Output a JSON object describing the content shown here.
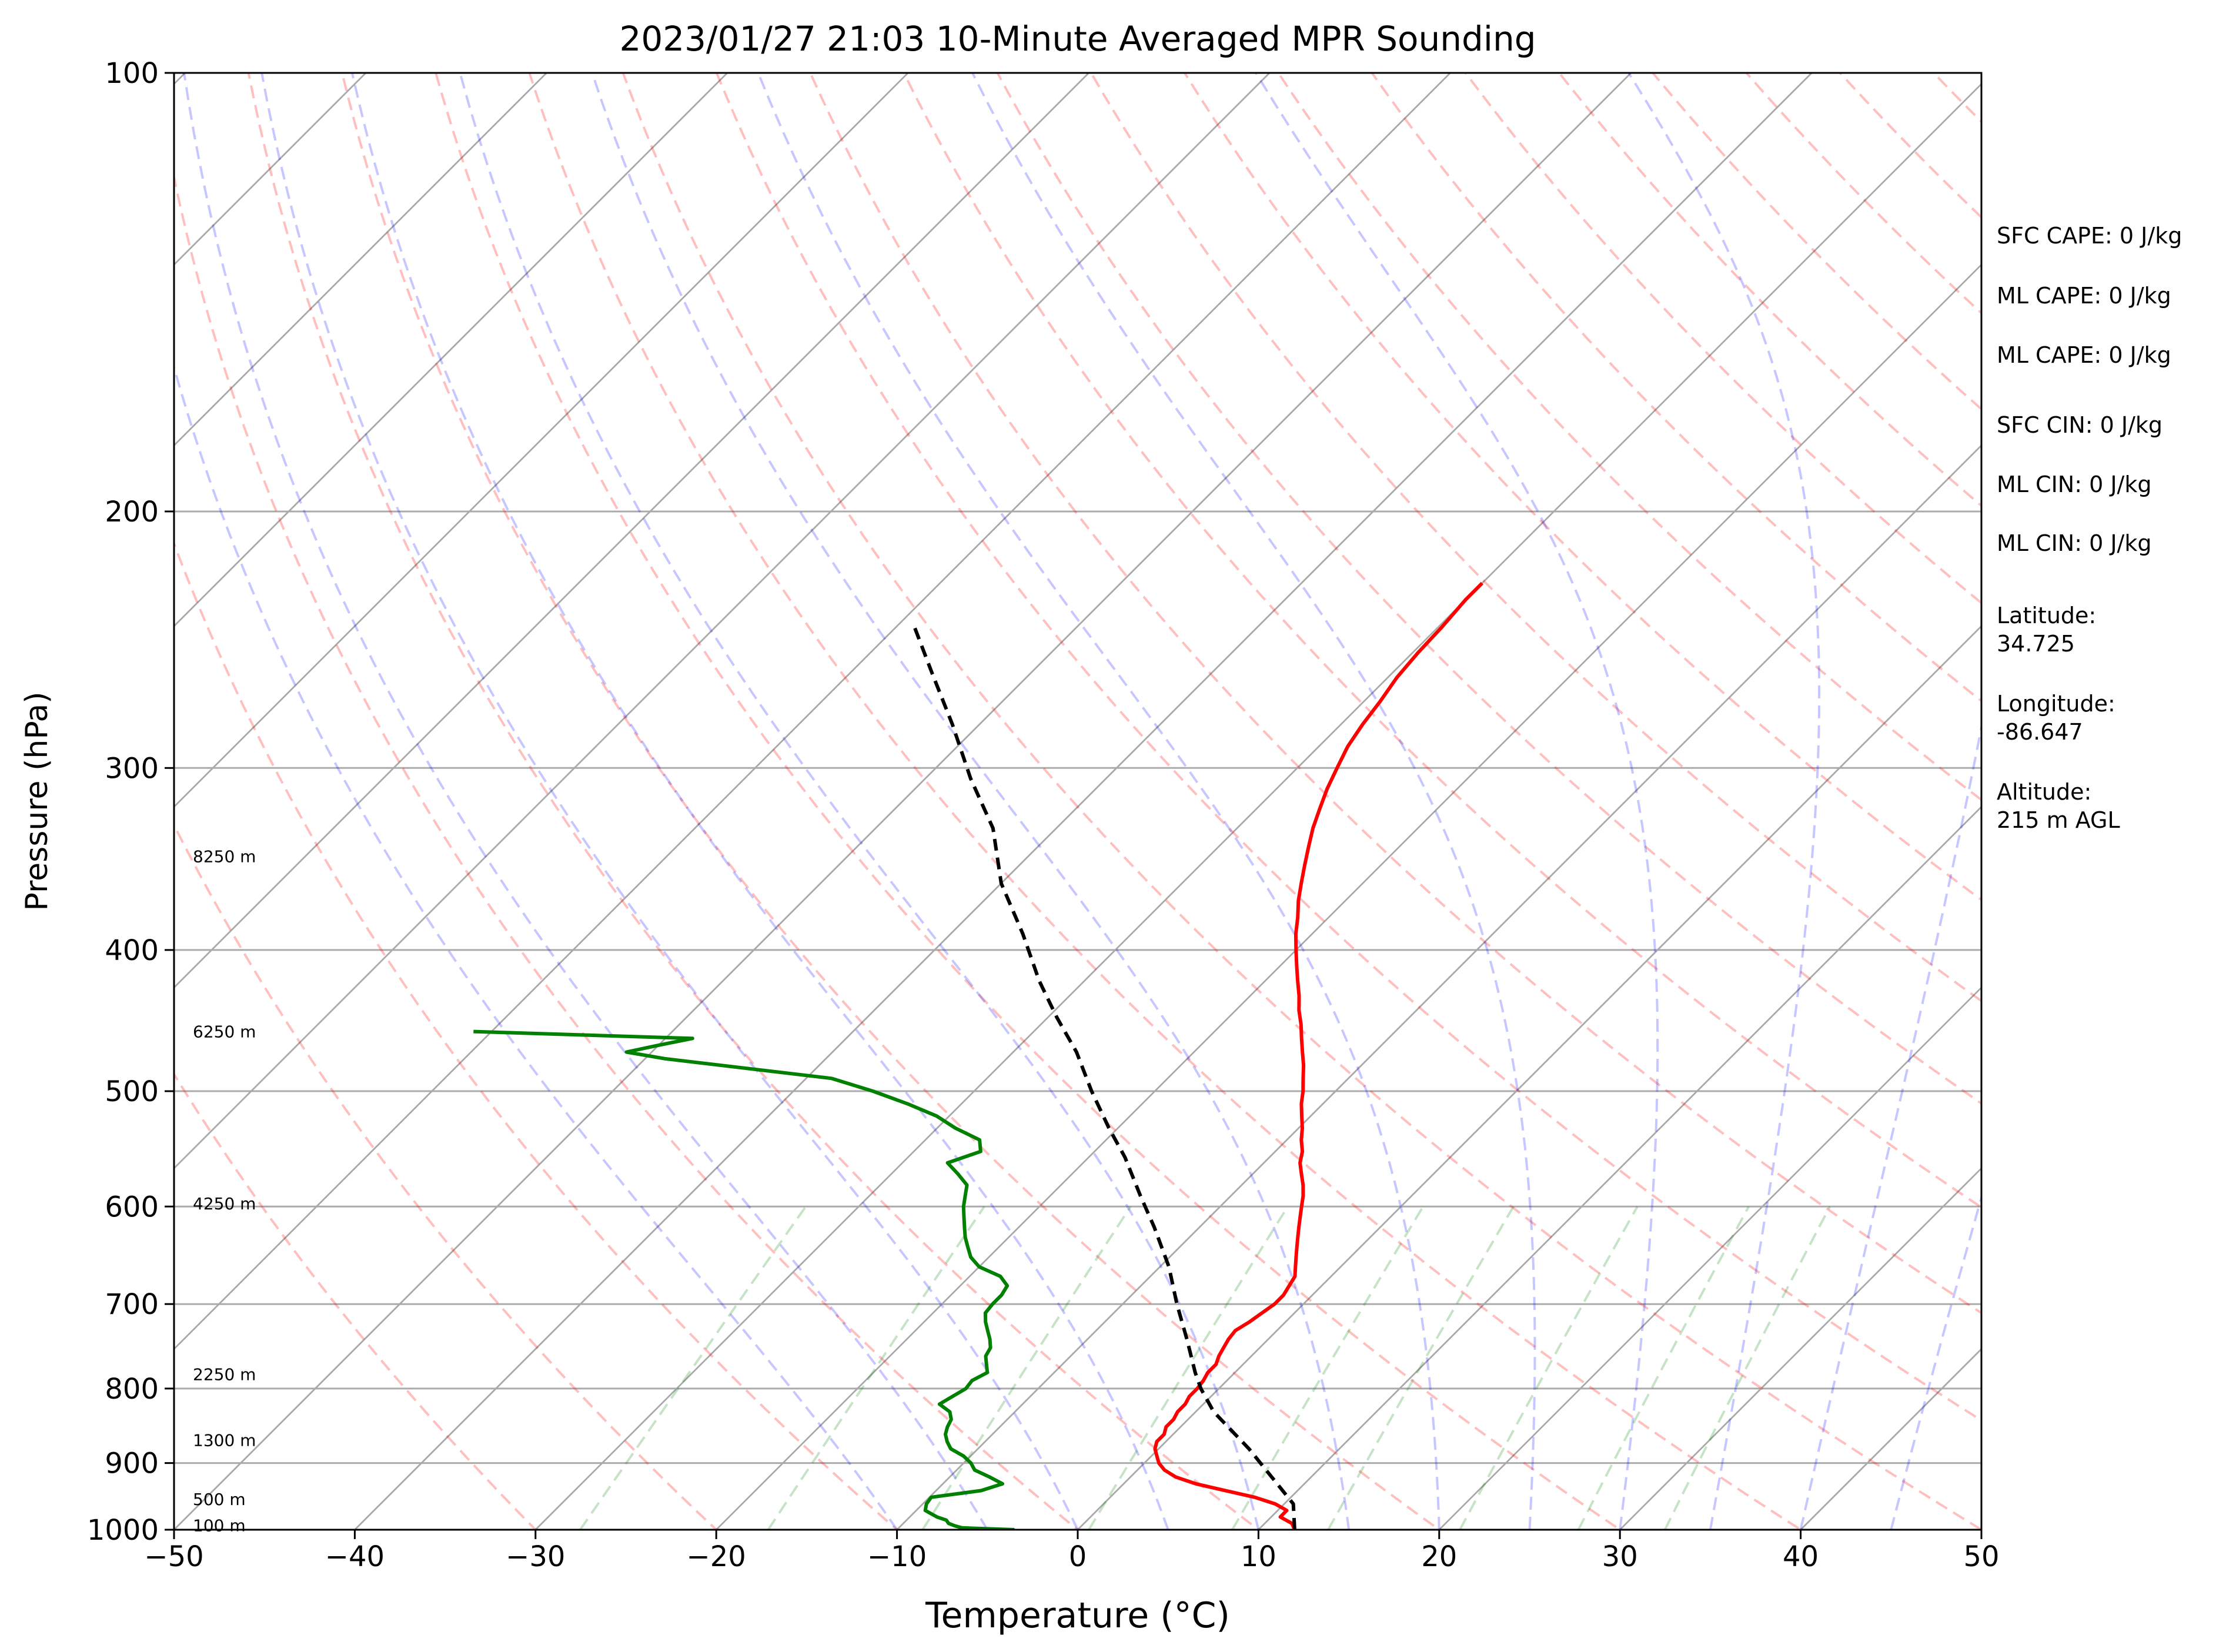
{
  "chart_data": {
    "type": "line",
    "subtype": "skew-t log-p sounding",
    "title": "2023/01/27 21:03 10-Minute Averaged MPR Sounding",
    "xlabel": "Temperature (°C)",
    "ylabel": "Pressure (hPa)",
    "xlim": [
      -50,
      50
    ],
    "ylim": [
      1000,
      100
    ],
    "y_scale": "log",
    "x_ticks": [
      -50,
      -40,
      -30,
      -20,
      -10,
      0,
      10,
      20,
      30,
      40,
      50
    ],
    "x_tick_labels": [
      "−50",
      "−40",
      "−30",
      "−20",
      "−10",
      "0",
      "10",
      "20",
      "30",
      "40",
      "50"
    ],
    "y_ticks": [
      100,
      200,
      300,
      400,
      500,
      600,
      700,
      800,
      900,
      1000
    ],
    "y_tick_labels": [
      "100",
      "200",
      "300",
      "400",
      "500",
      "600",
      "700",
      "800",
      "900",
      "1000"
    ],
    "grid": true,
    "height_labels": [
      {
        "text": "8250 m",
        "p": 345
      },
      {
        "text": "6250 m",
        "p": 455
      },
      {
        "text": "4250 m",
        "p": 597
      },
      {
        "text": "2250 m",
        "p": 782
      },
      {
        "text": "1300 m",
        "p": 868
      },
      {
        "text": "500 m",
        "p": 953
      },
      {
        "text": "100 m",
        "p": 993
      }
    ],
    "series": [
      {
        "color": "#ff0000",
        "points": [
          [
            12.0,
            1000
          ],
          [
            11.5,
            990
          ],
          [
            10.5,
            980
          ],
          [
            10.5,
            970
          ],
          [
            9.5,
            960
          ],
          [
            8.0,
            950
          ],
          [
            6.0,
            940
          ],
          [
            4.0,
            930
          ],
          [
            2.5,
            920
          ],
          [
            1.5,
            910
          ],
          [
            0.8,
            900
          ],
          [
            0.3,
            890
          ],
          [
            -0.2,
            880
          ],
          [
            -0.5,
            870
          ],
          [
            -0.5,
            860
          ],
          [
            -0.8,
            850
          ],
          [
            -0.8,
            840
          ],
          [
            -1.0,
            830
          ],
          [
            -1.0,
            820
          ],
          [
            -1.2,
            810
          ],
          [
            -1.2,
            800
          ],
          [
            -1.3,
            790
          ],
          [
            -1.5,
            780
          ],
          [
            -1.5,
            770
          ],
          [
            -1.8,
            760
          ],
          [
            -2.0,
            750
          ],
          [
            -2.2,
            740
          ],
          [
            -2.3,
            730
          ],
          [
            -2.0,
            720
          ],
          [
            -1.8,
            710
          ],
          [
            -1.6,
            700
          ],
          [
            -1.6,
            690
          ],
          [
            -1.8,
            680
          ],
          [
            -2.0,
            670
          ],
          [
            -2.5,
            660
          ],
          [
            -3.0,
            650
          ],
          [
            -3.5,
            640
          ],
          [
            -4.0,
            630
          ],
          [
            -4.5,
            620
          ],
          [
            -5.0,
            610
          ],
          [
            -5.5,
            600
          ],
          [
            -6.0,
            590
          ],
          [
            -6.6,
            580
          ],
          [
            -7.3,
            570
          ],
          [
            -8.0,
            560
          ],
          [
            -8.5,
            550
          ],
          [
            -9.2,
            540
          ],
          [
            -9.8,
            530
          ],
          [
            -10.5,
            520
          ],
          [
            -11.2,
            510
          ],
          [
            -11.8,
            500
          ],
          [
            -12.5,
            490
          ],
          [
            -13.2,
            480
          ],
          [
            -14.0,
            470
          ],
          [
            -14.8,
            460
          ],
          [
            -15.6,
            450
          ],
          [
            -16.5,
            440
          ],
          [
            -17.3,
            430
          ],
          [
            -18.2,
            420
          ],
          [
            -19.1,
            410
          ],
          [
            -20.0,
            400
          ],
          [
            -20.9,
            390
          ],
          [
            -21.7,
            380
          ],
          [
            -22.6,
            370
          ],
          [
            -23.4,
            360
          ],
          [
            -24.2,
            350
          ],
          [
            -25.0,
            340
          ],
          [
            -25.8,
            330
          ],
          [
            -26.5,
            320
          ],
          [
            -27.2,
            310
          ],
          [
            -27.8,
            300
          ],
          [
            -28.4,
            290
          ],
          [
            -28.8,
            280
          ],
          [
            -29.1,
            270
          ],
          [
            -29.5,
            260
          ],
          [
            -29.7,
            250
          ],
          [
            -29.8,
            240
          ],
          [
            -30.0,
            230
          ],
          [
            -30.0,
            224
          ]
        ]
      },
      {
        "color": "#008000",
        "points": [
          [
            -3.5,
            1000
          ],
          [
            -4.5,
            999
          ],
          [
            -6.5,
            997
          ],
          [
            -7.0,
            994
          ],
          [
            -7.5,
            990
          ],
          [
            -7.8,
            985
          ],
          [
            -8.5,
            980
          ],
          [
            -9.0,
            975
          ],
          [
            -9.5,
            970
          ],
          [
            -9.8,
            960
          ],
          [
            -9.9,
            950
          ],
          [
            -7.5,
            940
          ],
          [
            -6.7,
            930
          ],
          [
            -7.8,
            920
          ],
          [
            -9.0,
            910
          ],
          [
            -9.6,
            900
          ],
          [
            -10.4,
            890
          ],
          [
            -11.5,
            880
          ],
          [
            -12.1,
            870
          ],
          [
            -12.6,
            860
          ],
          [
            -12.9,
            850
          ],
          [
            -13.1,
            840
          ],
          [
            -13.6,
            830
          ],
          [
            -14.6,
            820
          ],
          [
            -14.3,
            810
          ],
          [
            -14.0,
            800
          ],
          [
            -14.1,
            790
          ],
          [
            -13.7,
            780
          ],
          [
            -14.2,
            770
          ],
          [
            -14.7,
            760
          ],
          [
            -14.9,
            750
          ],
          [
            -15.4,
            740
          ],
          [
            -16.0,
            730
          ],
          [
            -16.6,
            720
          ],
          [
            -17.1,
            710
          ],
          [
            -17.2,
            700
          ],
          [
            -17.2,
            690
          ],
          [
            -17.4,
            680
          ],
          [
            -18.3,
            670
          ],
          [
            -20.0,
            660
          ],
          [
            -21.0,
            650
          ],
          [
            -21.7,
            640
          ],
          [
            -22.4,
            630
          ],
          [
            -23.0,
            620
          ],
          [
            -23.6,
            610
          ],
          [
            -24.2,
            600
          ],
          [
            -24.7,
            590
          ],
          [
            -25.2,
            580
          ],
          [
            -26.3,
            570
          ],
          [
            -27.5,
            560
          ],
          [
            -26.3,
            550
          ],
          [
            -27.0,
            540
          ],
          [
            -29.0,
            530
          ],
          [
            -30.7,
            520
          ],
          [
            -33.0,
            510
          ],
          [
            -35.6,
            500
          ],
          [
            -38.6,
            490
          ],
          [
            -48.9,
            475
          ],
          [
            -51.4,
            470
          ],
          [
            -50.0,
            465
          ],
          [
            -48.5,
            460
          ],
          [
            -61.0,
            455
          ]
        ]
      },
      {
        "color": "#000000",
        "line_style": "dashed",
        "points": [
          [
            12.0,
            1000
          ],
          [
            10.5,
            960
          ],
          [
            5.0,
            880
          ],
          [
            1.0,
            830
          ],
          [
            -1.0,
            800
          ],
          [
            -2.2,
            780
          ],
          [
            -4.5,
            740
          ],
          [
            -7.0,
            700
          ],
          [
            -9.5,
            660
          ],
          [
            -12.5,
            620
          ],
          [
            -15.0,
            590
          ],
          [
            -18.0,
            555
          ],
          [
            -20.5,
            530
          ],
          [
            -23.5,
            500
          ],
          [
            -26.5,
            470
          ],
          [
            -29.5,
            445
          ],
          [
            -32.5,
            420
          ],
          [
            -36.0,
            390
          ],
          [
            -40.0,
            360
          ],
          [
            -43.5,
            330
          ],
          [
            -47.5,
            305
          ],
          [
            -51.5,
            280
          ],
          [
            -55.5,
            258
          ],
          [
            -59.0,
            240
          ]
        ]
      }
    ]
  },
  "stats": [
    "SFC CAPE: 0 J/kg",
    "ML CAPE: 0 J/kg",
    "ML CAPE: 0 J/kg",
    "SFC CIN: 0 J/kg",
    "ML CIN: 0 J/kg",
    "ML CIN: 0 J/kg"
  ],
  "location": {
    "latitude_label": "Latitude:",
    "latitude": "34.725",
    "longitude_label": "Longitude:",
    "longitude": "-86.647",
    "altitude_label": "Altitude:",
    "altitude": "215 m AGL"
  }
}
